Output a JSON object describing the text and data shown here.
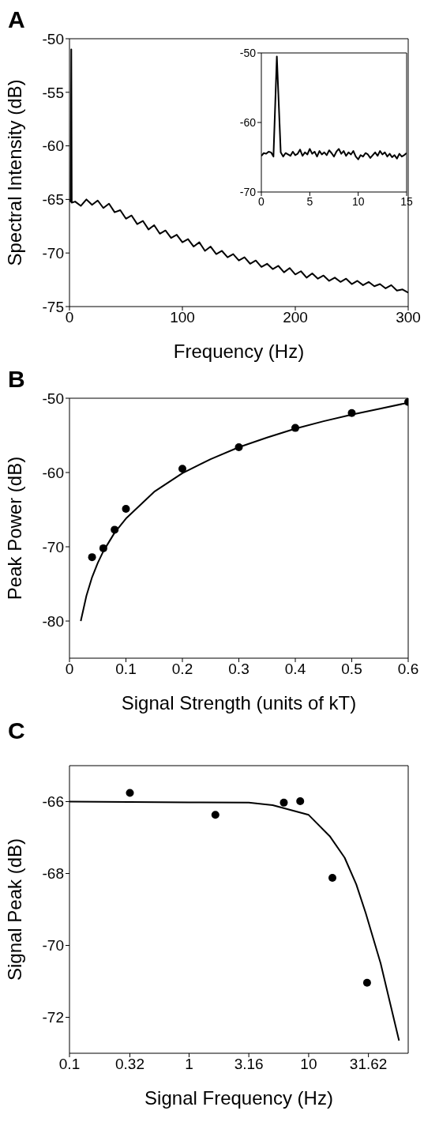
{
  "chart_data": [
    {
      "type": "line",
      "title": "A",
      "xlabel": "Frequency (Hz)",
      "ylabel": "Spectral Intensity (dB)",
      "xlim": [
        0,
        300
      ],
      "ylim": [
        -75,
        -50
      ],
      "xticks": [
        0,
        100,
        200,
        300
      ],
      "yticks": [
        -75,
        -70,
        -65,
        -60,
        -55,
        -50
      ],
      "grid": false,
      "legend": false,
      "series": [
        {
          "color": "#000000",
          "x": [
            0,
            1,
            1.6,
            2,
            5,
            10,
            15,
            20,
            25,
            30,
            35,
            40,
            45,
            50,
            55,
            60,
            65,
            70,
            75,
            80,
            85,
            90,
            95,
            100,
            105,
            110,
            115,
            120,
            125,
            130,
            135,
            140,
            145,
            150,
            155,
            160,
            165,
            170,
            175,
            180,
            185,
            190,
            195,
            200,
            205,
            210,
            215,
            220,
            225,
            230,
            235,
            240,
            245,
            250,
            255,
            260,
            265,
            270,
            275,
            280,
            285,
            290,
            295,
            300
          ],
          "values": [
            -65,
            -65.2,
            -51,
            -65.3,
            -65.2,
            -65.6,
            -65.0,
            -65.5,
            -65.1,
            -65.8,
            -65.4,
            -66.2,
            -66.0,
            -66.8,
            -66.5,
            -67.3,
            -67.0,
            -67.8,
            -67.4,
            -68.2,
            -67.9,
            -68.6,
            -68.3,
            -69.0,
            -68.7,
            -69.4,
            -69.0,
            -69.8,
            -69.4,
            -70.1,
            -69.8,
            -70.4,
            -70.1,
            -70.7,
            -70.4,
            -71.0,
            -70.7,
            -71.3,
            -71.0,
            -71.5,
            -71.2,
            -71.8,
            -71.4,
            -72.0,
            -71.7,
            -72.3,
            -71.9,
            -72.4,
            -72.1,
            -72.6,
            -72.3,
            -72.7,
            -72.4,
            -72.9,
            -72.6,
            -73.0,
            -72.7,
            -73.1,
            -72.9,
            -73.3,
            -73.0,
            -73.5,
            -73.4,
            -73.7
          ]
        }
      ]
    },
    {
      "type": "line",
      "xlim": [
        0,
        15
      ],
      "ylim": [
        -70,
        -50
      ],
      "xticks": [
        0,
        5,
        10,
        15
      ],
      "yticks": [
        -70,
        -60,
        -50
      ],
      "grid": false,
      "legend": false,
      "series": [
        {
          "color": "#000000",
          "x": [
            0,
            0.25,
            0.5,
            0.75,
            1,
            1.25,
            1.6,
            2,
            2.25,
            2.5,
            2.75,
            3,
            3.25,
            3.5,
            3.75,
            4,
            4.25,
            4.5,
            4.75,
            5,
            5.25,
            5.5,
            5.75,
            6,
            6.25,
            6.5,
            6.75,
            7,
            7.25,
            7.5,
            7.75,
            8,
            8.25,
            8.5,
            8.75,
            9,
            9.25,
            9.5,
            9.75,
            10,
            10.25,
            10.5,
            10.75,
            11,
            11.25,
            11.5,
            11.75,
            12,
            12.25,
            12.5,
            12.75,
            13,
            13.25,
            13.5,
            13.75,
            14,
            14.25,
            14.5,
            14.75,
            15
          ],
          "values": [
            -64.8,
            -64.4,
            -64.5,
            -64.2,
            -64.3,
            -64.9,
            -50.5,
            -64.3,
            -64.9,
            -64.4,
            -64.6,
            -64.8,
            -64.2,
            -64.7,
            -64.5,
            -63.9,
            -64.8,
            -64.3,
            -64.6,
            -63.8,
            -64.5,
            -64.2,
            -64.9,
            -64.1,
            -64.6,
            -64.3,
            -64.7,
            -64.0,
            -64.4,
            -64.9,
            -64.2,
            -63.8,
            -64.5,
            -64.1,
            -64.8,
            -64.3,
            -64.6,
            -64.1,
            -64.9,
            -65.3,
            -64.7,
            -64.9,
            -64.4,
            -64.6,
            -65.1,
            -64.7,
            -64.3,
            -64.8,
            -64.1,
            -64.6,
            -64.3,
            -64.9,
            -64.5,
            -65.0,
            -64.7,
            -65.2,
            -64.5,
            -64.9,
            -64.7,
            -64.4
          ]
        }
      ]
    },
    {
      "type": "scatter",
      "title": "B",
      "xlabel": "Signal Strength (units of kT)",
      "ylabel": "Peak Power (dB)",
      "xlim": [
        0,
        0.6
      ],
      "ylim": [
        -85,
        -50
      ],
      "xticks": [
        0,
        0.1,
        0.2,
        0.3,
        0.4,
        0.5,
        0.6
      ],
      "yticks": [
        -80,
        -70,
        -60,
        -50
      ],
      "grid": false,
      "legend": false,
      "series": [
        {
          "color": "#000000",
          "marker": "circle",
          "x": [
            0.04,
            0.06,
            0.08,
            0.1,
            0.2,
            0.3,
            0.4,
            0.5,
            0.6
          ],
          "values": [
            -71.4,
            -70.2,
            -67.7,
            -64.9,
            -59.5,
            -56.6,
            -54.0,
            -52.0,
            -50.5
          ]
        },
        {
          "type": "line",
          "color": "#000000",
          "x": [
            0.02,
            0.03,
            0.04,
            0.05,
            0.06,
            0.08,
            0.1,
            0.15,
            0.2,
            0.25,
            0.3,
            0.35,
            0.4,
            0.45,
            0.5,
            0.55,
            0.6
          ],
          "values": [
            -80,
            -76.6,
            -74.1,
            -72.2,
            -70.6,
            -68.1,
            -66.2,
            -62.6,
            -60.1,
            -58.2,
            -56.6,
            -55.3,
            -54.1,
            -53.1,
            -52.2,
            -51.4,
            -50.6
          ]
        }
      ]
    },
    {
      "type": "scatter",
      "title": "C",
      "xlabel": "Signal Frequency (Hz)",
      "ylabel": "Signal Peak (dB)",
      "log": "x",
      "xlim": [
        0.1,
        68
      ],
      "ylim": [
        -73,
        -65
      ],
      "xticks": [
        0.1,
        0.32,
        1,
        3.16,
        10,
        31.62
      ],
      "yticks": [
        -72,
        -70,
        -68,
        -66
      ],
      "grid": false,
      "legend": false,
      "series": [
        {
          "color": "#000000",
          "marker": "circle",
          "x": [
            0.32,
            1.66,
            6.2,
            8.5,
            15.8,
            30.8
          ],
          "values": [
            -65.76,
            -66.37,
            -66.03,
            -65.99,
            -68.12,
            -71.04
          ]
        },
        {
          "type": "line",
          "color": "#000000",
          "x": [
            0.1,
            1,
            3.16,
            5,
            10,
            15,
            20,
            25,
            30,
            40,
            57
          ],
          "values": [
            -66,
            -66.02,
            -66.03,
            -66.1,
            -66.37,
            -66.96,
            -67.56,
            -68.3,
            -69.1,
            -70.5,
            -72.65
          ]
        }
      ]
    }
  ]
}
